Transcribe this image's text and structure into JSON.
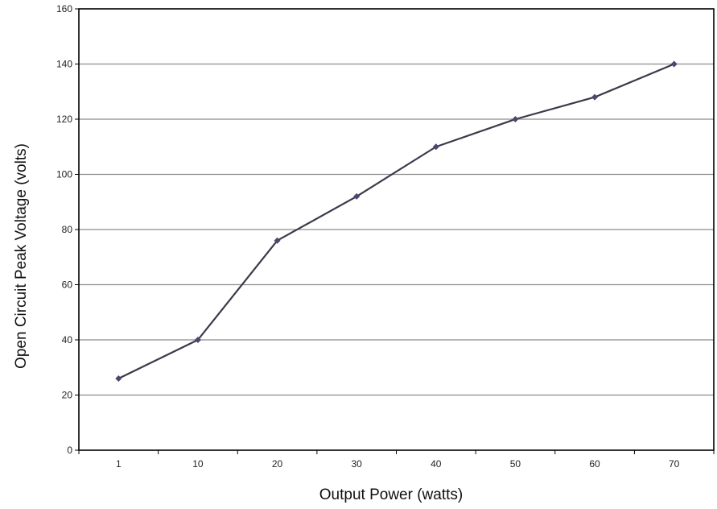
{
  "chart_data": {
    "type": "line",
    "title": "",
    "xlabel": "Output Power (watts)",
    "ylabel": "Open Circuit Peak Voltage (volts)",
    "categories": [
      "1",
      "10",
      "20",
      "30",
      "40",
      "50",
      "60",
      "70"
    ],
    "series": [
      {
        "values": [
          26,
          40,
          76,
          92,
          110,
          120,
          128,
          140
        ]
      }
    ],
    "ylim": [
      0,
      160
    ],
    "yticks": [
      0,
      20,
      40,
      60,
      80,
      100,
      120,
      140,
      160
    ],
    "grid": true,
    "legend": "none",
    "colors": {
      "line": "#3a3a4a",
      "marker": "#4a4870",
      "grid": "#8c8c8c",
      "axis": "#000000"
    }
  }
}
